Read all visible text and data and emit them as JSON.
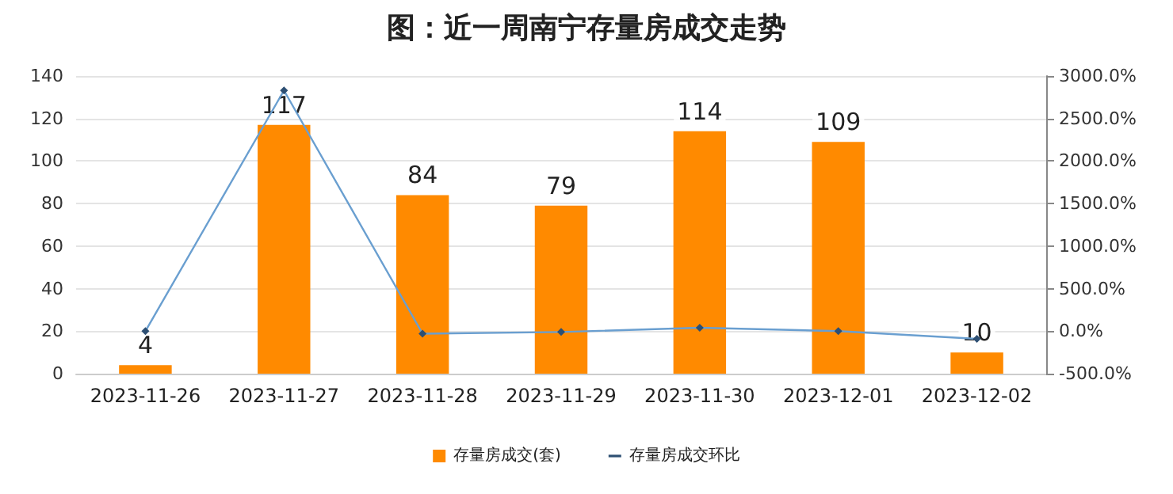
{
  "chart_data": {
    "type": "bar",
    "title": "图：近一周南宁存量房成交走势",
    "categories": [
      "2023-11-26",
      "2023-11-27",
      "2023-11-28",
      "2023-11-29",
      "2023-11-30",
      "2023-12-01",
      "2023-12-02"
    ],
    "series": [
      {
        "name": "存量房成交(套)",
        "color": "#ff8a00",
        "values": [
          4,
          117,
          84,
          79,
          114,
          109,
          10
        ],
        "value_labels": [
          "4",
          "117",
          "84",
          "79",
          "114",
          "109",
          "10"
        ]
      },
      {
        "name": "存量房成交环比",
        "type": "line",
        "axis": "y2",
        "color": "#6a9fd0",
        "marker": "diamond",
        "values": [
          0,
          2830,
          -30,
          -10,
          40,
          0,
          -90
        ]
      }
    ],
    "ylim": [
      0,
      140
    ],
    "yticks": [
      0,
      20,
      40,
      60,
      80,
      100,
      120,
      140
    ],
    "y2lim": [
      -500,
      3000
    ],
    "y2ticks": [
      {
        "value": -500,
        "label": "-500.0%"
      },
      {
        "value": 0,
        "label": "0.0%"
      },
      {
        "value": 500,
        "label": "500.0%"
      },
      {
        "value": 1000,
        "label": "1000.0%"
      },
      {
        "value": 1500,
        "label": "1500.0%"
      },
      {
        "value": 2000,
        "label": "2000.0%"
      },
      {
        "value": 2500,
        "label": "2500.0%"
      },
      {
        "value": 3000,
        "label": "3000.0%"
      }
    ],
    "grid": "y",
    "legend": "bottom"
  }
}
